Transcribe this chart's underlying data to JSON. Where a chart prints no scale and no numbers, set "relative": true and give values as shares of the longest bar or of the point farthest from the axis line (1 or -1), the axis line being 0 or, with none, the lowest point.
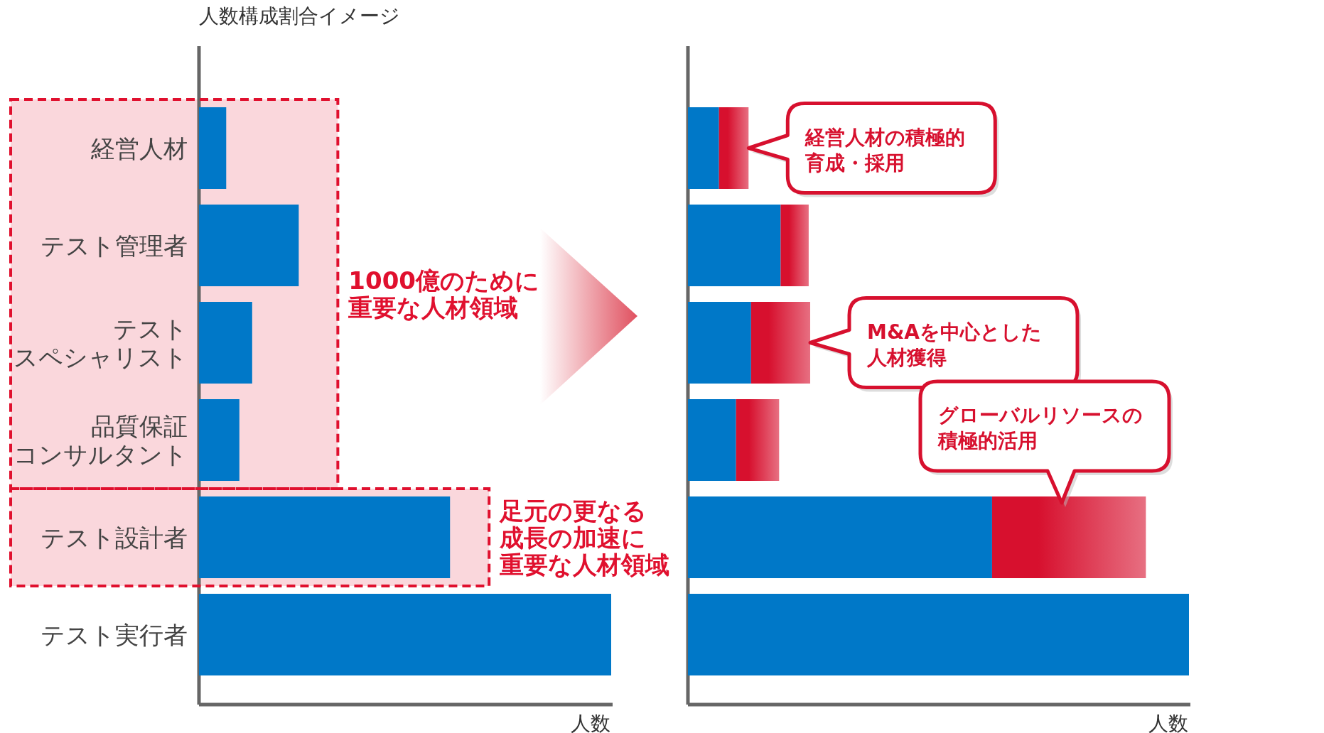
{
  "chart_data": [
    {
      "type": "bar",
      "orientation": "horizontal",
      "relative": true,
      "title": "人数構成割合イメージ",
      "xlabel": "人数",
      "tick_labels": "y",
      "categories": [
        "経営人材",
        "テスト管理者",
        "テストスペシャリスト",
        "品質保証コンサルタント",
        "テスト設計者",
        "テスト実行者"
      ],
      "series": [
        {
          "color": "#0078c8",
          "values": [
            0.066,
            0.242,
            0.129,
            0.098,
            0.609,
            1
          ]
        }
      ],
      "bands": [
        {
          "axis": "y",
          "from": "経営人材",
          "to": "品質保証コンサルタント",
          "label": "1000億のために重要な人材領域",
          "color": "#e0102e"
        },
        {
          "axis": "y",
          "from": "テスト設計者",
          "to": "テスト設計者",
          "label": "足元の更なる成長の加速に重要な人材領域",
          "color": "#e0102e"
        }
      ]
    },
    {
      "type": "bar",
      "orientation": "horizontal",
      "relative": true,
      "stacked": true,
      "xlabel": "人数",
      "tick_labels": false,
      "categories": [
        "経営人材",
        "テスト管理者",
        "テストスペシャリスト",
        "品質保証コンサルタント",
        "テスト設計者",
        "テスト実行者"
      ],
      "series": [
        {
          "color": "#0078c8",
          "values": [
            0.062,
            0.185,
            0.126,
            0.096,
            0.607,
            1
          ]
        },
        {
          "color": "#d7102e",
          "values": [
            0.059,
            0.056,
            0.118,
            0.086,
            0.307,
            null
          ]
        }
      ],
      "annotations": [
        {
          "text": "経営人材の積極的育成・採用",
          "x": 0.121,
          "y": "経営人材"
        },
        {
          "text": "M&Aを中心とした人材獲得",
          "x": 0.244,
          "y": "テストスペシャリスト"
        },
        "グローバルリソースの積極的活用"
      ]
    }
  ]
}
